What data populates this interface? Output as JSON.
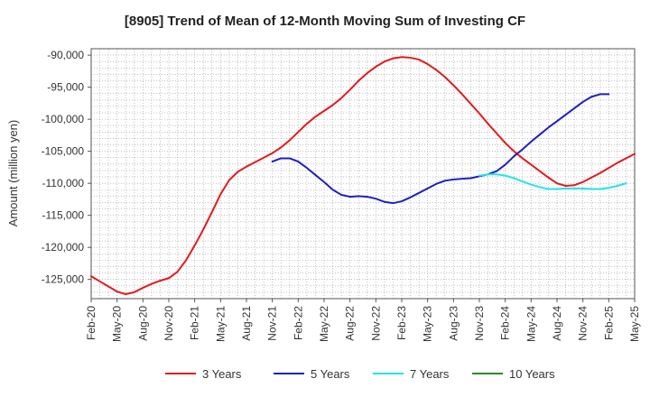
{
  "chart_data": {
    "type": "line",
    "title": "[8905]  Trend of Mean of 12-Month Moving Sum of Investing CF",
    "xlabel": "",
    "ylabel": "Amount (million yen)",
    "ylim": [
      -128000,
      -89000
    ],
    "yticks": [
      -90000,
      -95000,
      -100000,
      -105000,
      -110000,
      -115000,
      -120000,
      -125000
    ],
    "ytick_labels": [
      "-90,000",
      "-95,000",
      "-100,000",
      "-105,000",
      "-110,000",
      "-115,000",
      "-120,000",
      "-125,000"
    ],
    "x_tick_labels": [
      "Feb-20",
      "May-20",
      "Aug-20",
      "Nov-20",
      "Feb-21",
      "May-21",
      "Aug-21",
      "Nov-21",
      "Feb-22",
      "May-22",
      "Aug-22",
      "Nov-22",
      "Feb-23",
      "May-23",
      "Aug-23",
      "Nov-23",
      "Feb-24",
      "May-24",
      "Aug-24",
      "Nov-24",
      "Feb-25",
      "May-25"
    ],
    "grid": true,
    "legend": "bottom",
    "series": [
      {
        "name": "3 Years",
        "color": "#e31a1c",
        "start_month": 0,
        "values": [
          -124500,
          -125300,
          -126100,
          -126900,
          -127300,
          -127000,
          -126300,
          -125700,
          -125200,
          -124800,
          -123800,
          -122000,
          -119700,
          -117200,
          -114500,
          -111700,
          -109500,
          -108200,
          -107400,
          -106700,
          -106000,
          -105300,
          -104400,
          -103300,
          -102000,
          -100700,
          -99600,
          -98700,
          -97800,
          -96700,
          -95400,
          -94000,
          -92800,
          -91800,
          -91000,
          -90500,
          -90300,
          -90400,
          -90700,
          -91400,
          -92300,
          -93400,
          -94700,
          -96100,
          -97600,
          -99100,
          -100700,
          -102200,
          -103700,
          -105000,
          -106100,
          -107100,
          -108100,
          -109100,
          -110000,
          -110400,
          -110300,
          -109800,
          -109100,
          -108400,
          -107600,
          -106800,
          -106100,
          -105400
        ]
      },
      {
        "name": "5 Years",
        "color": "#1f1fbf",
        "start_month": 21,
        "values": [
          -106600,
          -106100,
          -106100,
          -106600,
          -107600,
          -108700,
          -109800,
          -111000,
          -111800,
          -112100,
          -112000,
          -112100,
          -112400,
          -112900,
          -113100,
          -112800,
          -112200,
          -111500,
          -110800,
          -110100,
          -109600,
          -109400,
          -109300,
          -109200,
          -108900,
          -108600,
          -108100,
          -107100,
          -105800,
          -104700,
          -103500,
          -102400,
          -101300,
          -100300,
          -99300,
          -98300,
          -97300,
          -96500,
          -96100,
          -96100
        ]
      },
      {
        "name": "7 Years",
        "color": "#22e5e5",
        "start_month": 45,
        "values": [
          -108800,
          -108600,
          -108600,
          -108800,
          -109200,
          -109700,
          -110200,
          -110600,
          -110900,
          -110900,
          -110800,
          -110800,
          -110800,
          -110900,
          -110900,
          -110700,
          -110400,
          -110000
        ]
      },
      {
        "name": "10 Years",
        "color": "#2a8a2a",
        "start_month": 0,
        "values": []
      }
    ]
  }
}
